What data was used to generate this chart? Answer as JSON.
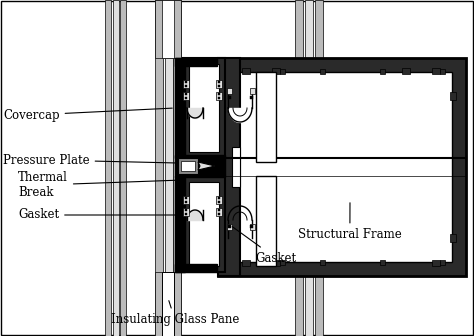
{
  "background_color": "#ffffff",
  "labels": {
    "covercap": "Covercap",
    "pressure_plate": "Pressure Plate",
    "thermal_break": "Thermal\nBreak",
    "gasket_left": "Gasket",
    "gasket_right": "Gasket",
    "structural_frame": "Structural Frame",
    "insulating_glass": "Insulating Glass Pane"
  },
  "colors": {
    "black": "#000000",
    "dark_gray": "#2a2a2a",
    "mid_gray": "#888888",
    "light_gray": "#bbbbbb",
    "very_light_gray": "#e0e0e0",
    "white": "#ffffff"
  },
  "figsize": [
    4.74,
    3.36
  ],
  "dpi": 100
}
